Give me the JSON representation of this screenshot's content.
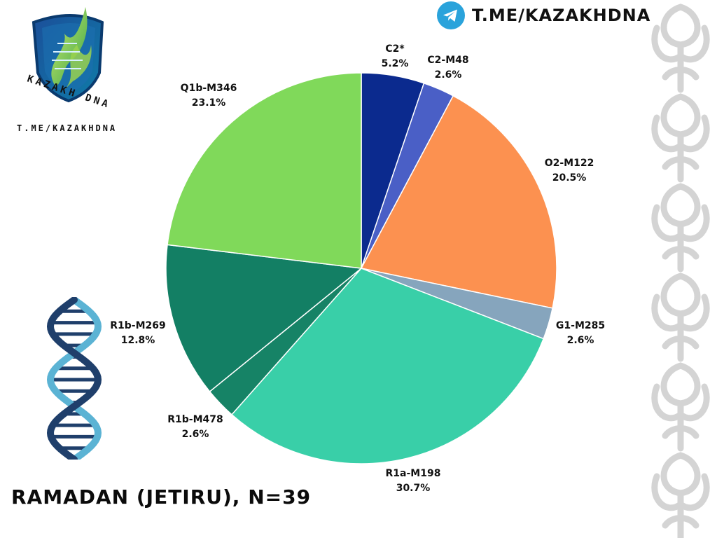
{
  "header": {
    "logo_text": "KAZAKH DNA",
    "logo_caption": "T.ME/KAZAKHDNA",
    "telegram_text": "T.ME/KAZAKHDNA"
  },
  "colors": {
    "C2*": "#0b2a8e",
    "C2-M48": "#4a5fc6",
    "O2-M122": "#fc9150",
    "G1-M285": "#86a5bd",
    "R1a-M198": "#39cfa8",
    "R1b-M478": "#168366",
    "R1b-M269": "#137f64",
    "Q1b-M346": "#80d95a",
    "telegram": "#2aa3db",
    "dna_dark": "#1f3f6b",
    "dna_light": "#5bb3d4",
    "ornament": "#d4d4d4"
  },
  "chart_data": {
    "type": "pie",
    "title": "RAMADAN (JETIRU), N=39",
    "start_angle_deg": 0,
    "direction": "clockwise",
    "slices": [
      {
        "name": "C2*",
        "value": 5.2,
        "label": "5.2%"
      },
      {
        "name": "C2-M48",
        "value": 2.6,
        "label": "2.6%"
      },
      {
        "name": "O2-M122",
        "value": 20.5,
        "label": "20.5%"
      },
      {
        "name": "G1-M285",
        "value": 2.6,
        "label": "2.6%"
      },
      {
        "name": "R1a-M198",
        "value": 30.7,
        "label": "30.7%"
      },
      {
        "name": "R1b-M478",
        "value": 2.6,
        "label": "2.6%"
      },
      {
        "name": "R1b-M269",
        "value": 12.8,
        "label": "12.8%"
      },
      {
        "name": "Q1b-M346",
        "value": 23.1,
        "label": "23.1%"
      }
    ]
  }
}
